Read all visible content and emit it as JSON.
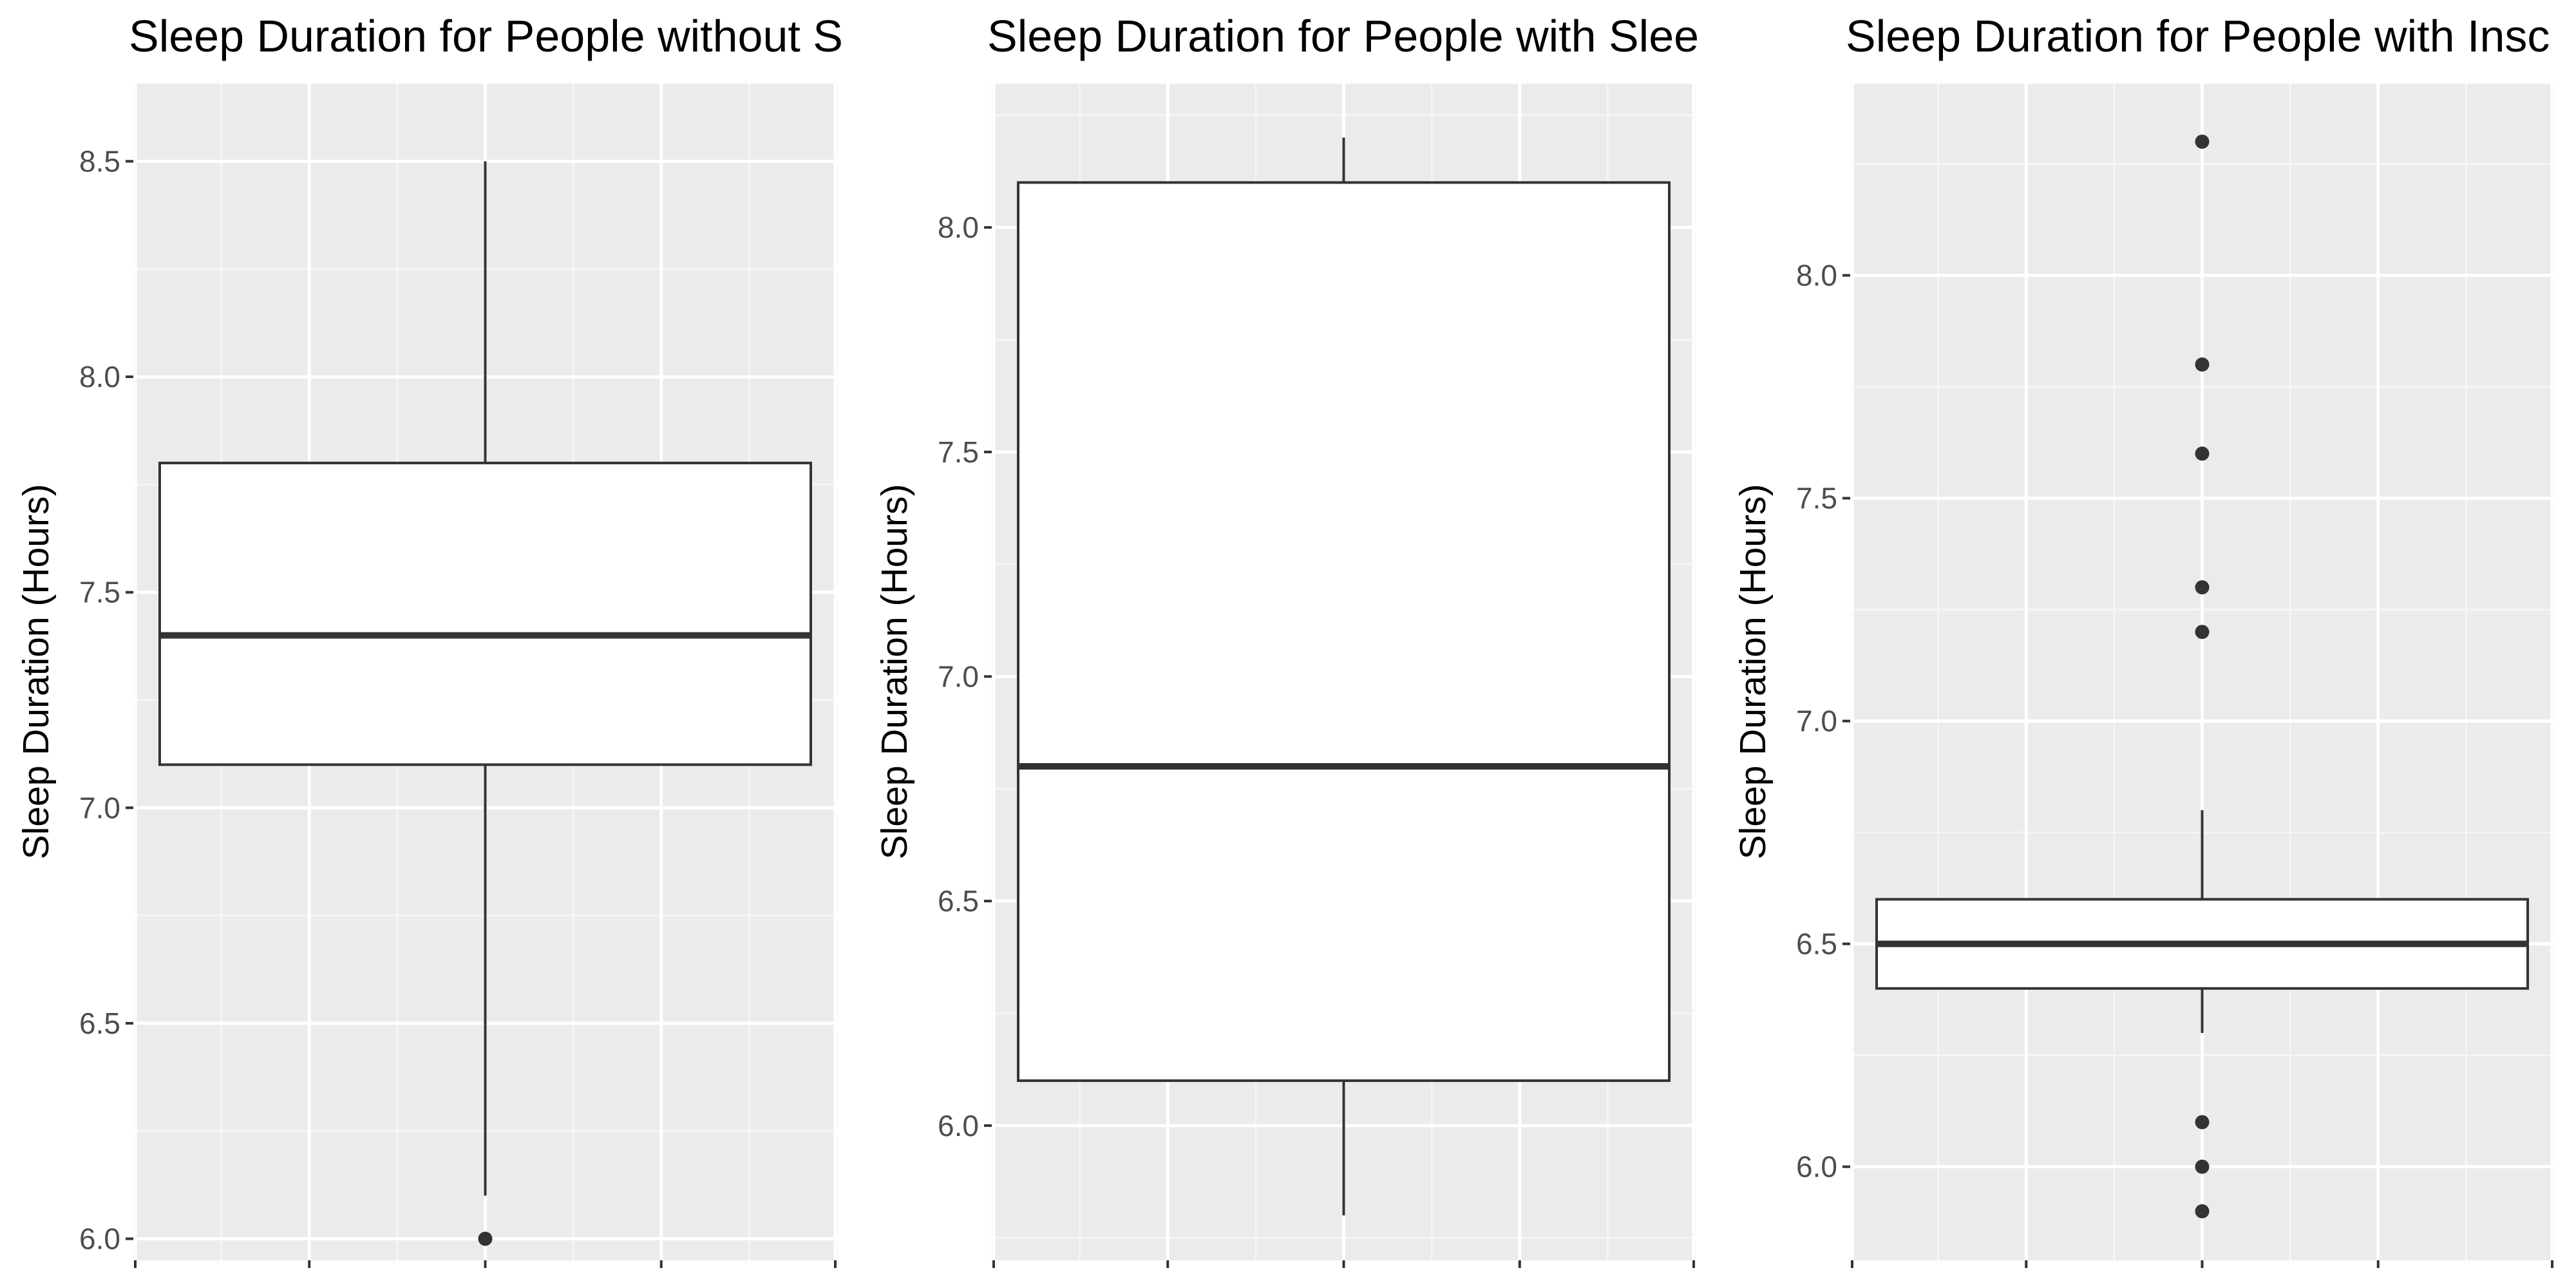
{
  "chart_data": [
    {
      "type": "boxplot",
      "title": "Sleep Duration for People without S",
      "ylabel": "Sleep Duration (Hours)",
      "xlabel": "",
      "ylim": [
        5.95,
        8.68
      ],
      "yticks": [
        "6.0",
        "6.5",
        "7.0",
        "7.5",
        "8.0",
        "8.5"
      ],
      "grid": true,
      "box": {
        "whisker_low": 6.1,
        "q1": 7.1,
        "median": 7.4,
        "q3": 7.8,
        "whisker_high": 8.5
      },
      "outliers": [
        6.0
      ]
    },
    {
      "type": "boxplot",
      "title": "Sleep Duration for People with Slee",
      "ylabel": "Sleep Duration (Hours)",
      "xlabel": "",
      "ylim": [
        5.7,
        8.32
      ],
      "yticks": [
        "6.0",
        "6.5",
        "7.0",
        "7.5",
        "8.0"
      ],
      "grid": true,
      "box": {
        "whisker_low": 5.8,
        "q1": 6.1,
        "median": 6.8,
        "q3": 8.1,
        "whisker_high": 8.2
      },
      "outliers": []
    },
    {
      "type": "boxplot",
      "title": "Sleep Duration for People with Insc",
      "ylabel": "Sleep Duration (Hours)",
      "xlabel": "",
      "ylim": [
        5.79,
        8.43
      ],
      "yticks": [
        "6.0",
        "6.5",
        "7.0",
        "7.5",
        "8.0"
      ],
      "grid": true,
      "box": {
        "whisker_low": 6.3,
        "q1": 6.4,
        "median": 6.5,
        "q3": 6.6,
        "whisker_high": 6.8
      },
      "outliers": [
        5.9,
        6.0,
        6.1,
        7.2,
        7.3,
        7.6,
        7.8,
        8.3
      ]
    }
  ],
  "colors": {
    "panel_bg": "#EBEBEB",
    "grid_major": "#FFFFFF",
    "grid_minor": "#F5F5F5",
    "box_fill": "#FFFFFF",
    "box_line": "#333333",
    "point": "#333333",
    "tick_text": "#4D4D4D",
    "title_text": "#000000"
  }
}
